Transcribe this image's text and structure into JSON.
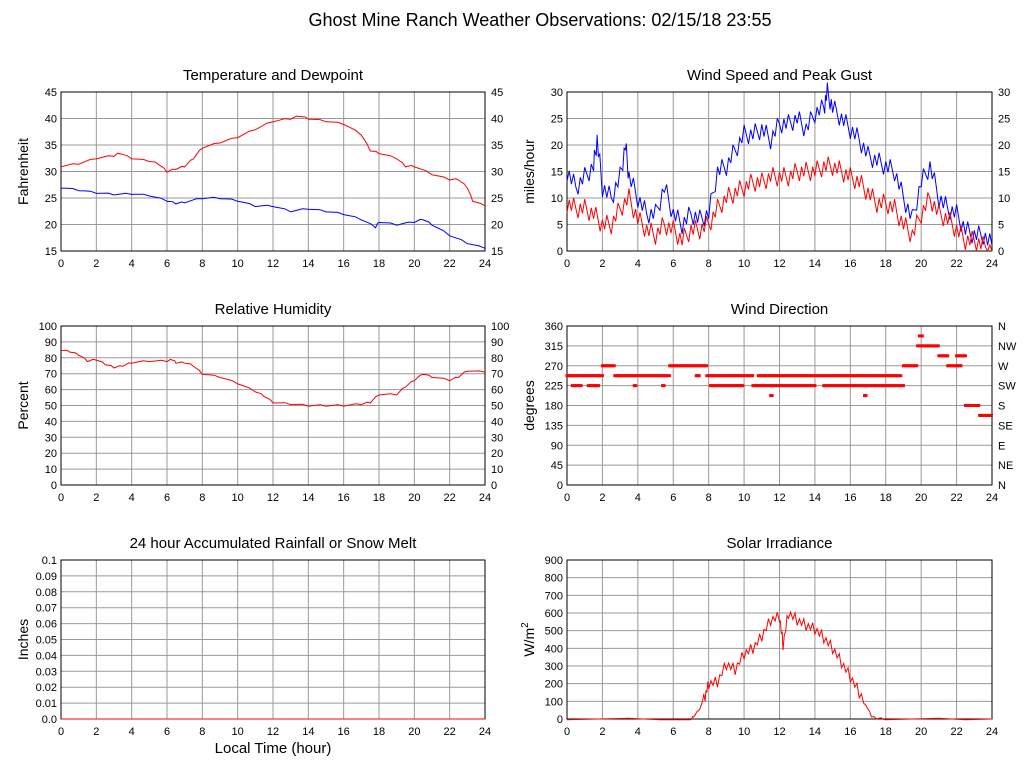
{
  "page_title": "Ghost Mine Ranch Weather Observations: 02/15/18 23:55",
  "x_axis_label": "Local Time (hour)",
  "colors": {
    "red": "#ff0000",
    "blue": "#0000ff",
    "grid": "#999999"
  },
  "chart_data": [
    {
      "id": "temp",
      "type": "line",
      "title": "Temperature and Dewpoint",
      "ylabel": "Fahrenheit",
      "xlim": [
        0,
        24
      ],
      "ylim": [
        15,
        45
      ],
      "xticks": [
        "0",
        "2",
        "4",
        "6",
        "8",
        "10",
        "12",
        "14",
        "16",
        "18",
        "20",
        "22",
        "24"
      ],
      "yticks": [
        "15",
        "20",
        "25",
        "30",
        "35",
        "40",
        "45"
      ],
      "yticks_right": [
        "15",
        "20",
        "25",
        "30",
        "35",
        "40",
        "45"
      ],
      "series": [
        {
          "name": "Temperature",
          "color": "#ff0000",
          "x": [
            0,
            1,
            2,
            3,
            3.3,
            4,
            5,
            5.5,
            6,
            6.5,
            7,
            7.5,
            8,
            9,
            10,
            11,
            12,
            13,
            13.5,
            14,
            15,
            16,
            17,
            17.5,
            18,
            19,
            19.5,
            20,
            21,
            22,
            22.5,
            23,
            23.3,
            24
          ],
          "y": [
            31,
            31.5,
            32.5,
            33,
            33.5,
            32.5,
            32,
            31.5,
            30,
            30.5,
            31,
            32.5,
            34.5,
            35.5,
            36.5,
            38,
            39.5,
            40,
            40.5,
            40,
            39.5,
            39,
            37,
            34,
            33.5,
            32.5,
            31,
            31,
            29.5,
            28.5,
            28.5,
            27,
            24.5,
            23.5
          ]
        },
        {
          "name": "Dewpoint",
          "color": "#0000ff",
          "x": [
            0,
            1,
            2,
            3,
            4,
            5,
            6,
            6.5,
            7,
            8,
            9,
            10,
            11,
            12,
            13,
            14,
            15,
            16,
            17,
            17.8,
            18,
            19,
            20,
            20.5,
            21,
            22,
            23,
            24
          ],
          "y": [
            27,
            26.5,
            26,
            25.7,
            25.8,
            25.5,
            24.5,
            24,
            24.2,
            25,
            25,
            24.5,
            23.5,
            23.5,
            22.5,
            23,
            22.5,
            22,
            21,
            19.5,
            20.5,
            20,
            20.5,
            21,
            20,
            18,
            16.5,
            15.5
          ]
        }
      ]
    },
    {
      "id": "wind",
      "type": "line",
      "title": "Wind Speed and Peak Gust",
      "ylabel": "miles/hour",
      "xlim": [
        0,
        24
      ],
      "ylim": [
        0,
        30
      ],
      "xticks": [
        "0",
        "2",
        "4",
        "6",
        "8",
        "10",
        "12",
        "14",
        "16",
        "18",
        "20",
        "22",
        "24"
      ],
      "yticks": [
        "0",
        "5",
        "10",
        "15",
        "20",
        "25",
        "30"
      ],
      "yticks_right": [
        "0",
        "5",
        "10",
        "15",
        "20",
        "25",
        "30"
      ],
      "series": [
        {
          "name": "Peak Gust",
          "color": "#0000ff",
          "x": [
            0,
            0.5,
            1,
            1.5,
            1.7,
            2,
            2.5,
            3,
            3.3,
            3.5,
            4,
            4.5,
            5,
            5.5,
            6,
            6.5,
            7,
            7.5,
            8,
            8.5,
            9,
            9.5,
            10,
            10.5,
            11,
            11.5,
            12,
            12.5,
            13,
            13.5,
            14,
            14.5,
            14.7,
            15,
            15.5,
            16,
            16.5,
            17,
            17.5,
            18,
            18.5,
            19,
            19.5,
            20,
            20.5,
            21,
            21.5,
            22,
            22.5,
            23,
            23.5,
            24
          ],
          "y": [
            15,
            12,
            14,
            16,
            21,
            12,
            10,
            14,
            20,
            14,
            10,
            7,
            7,
            12,
            7,
            5,
            7,
            6,
            7,
            15,
            16,
            19,
            22,
            22,
            23,
            21,
            24,
            24,
            25,
            23,
            26,
            27,
            30,
            27,
            25,
            23,
            21,
            18,
            17,
            16,
            15,
            10,
            6,
            13,
            16,
            10,
            8,
            7,
            4,
            3,
            3,
            1
          ]
        },
        {
          "name": "Wind Speed",
          "color": "#ff0000",
          "x": [
            0,
            0.5,
            1,
            1.5,
            2,
            2.5,
            3,
            3.5,
            4,
            4.5,
            5,
            5.5,
            6,
            6.5,
            7,
            7.5,
            8,
            8.5,
            9,
            9.5,
            10,
            10.5,
            11,
            11.5,
            12,
            12.5,
            13,
            13.5,
            14,
            14.5,
            15,
            15.5,
            16,
            16.5,
            17,
            17.5,
            18,
            18.5,
            19,
            19.5,
            20,
            20.5,
            21,
            21.5,
            22,
            22.5,
            23,
            23.5,
            24
          ],
          "y": [
            9,
            8,
            8,
            7,
            5,
            5,
            8,
            10,
            6,
            4,
            3,
            5,
            4,
            2,
            4,
            4,
            5,
            8,
            10,
            11,
            12,
            13,
            13,
            14,
            14,
            14,
            15,
            15,
            15,
            16,
            16,
            15,
            14,
            13,
            11,
            9,
            9,
            8,
            5,
            3,
            7,
            10,
            7,
            6,
            4,
            2,
            2,
            1,
            0
          ]
        }
      ]
    },
    {
      "id": "rh",
      "type": "line",
      "title": "Relative Humidity",
      "ylabel": "Percent",
      "xlim": [
        0,
        24
      ],
      "ylim": [
        0,
        100
      ],
      "xticks": [
        "0",
        "2",
        "4",
        "6",
        "8",
        "10",
        "12",
        "14",
        "16",
        "18",
        "20",
        "22",
        "24"
      ],
      "yticks": [
        "0",
        "10",
        "20",
        "30",
        "40",
        "50",
        "60",
        "70",
        "80",
        "90",
        "100"
      ],
      "yticks_right": [
        "0",
        "10",
        "20",
        "30",
        "40",
        "50",
        "60",
        "70",
        "80",
        "90",
        "100"
      ],
      "series": [
        {
          "name": "Relative Humidity",
          "color": "#ff0000",
          "x": [
            0,
            0.5,
            1,
            1.5,
            2,
            2.5,
            3,
            3.5,
            4,
            5,
            6,
            6.3,
            6.5,
            7,
            7.5,
            8,
            9,
            10,
            11,
            11.5,
            12,
            13,
            14,
            15,
            16,
            17,
            17.5,
            18,
            19,
            19.5,
            20,
            20.5,
            21,
            22,
            22.5,
            23,
            24
          ],
          "y": [
            85,
            84,
            82,
            78,
            79,
            76,
            74,
            75,
            77,
            78,
            78,
            79,
            77,
            77,
            75,
            70,
            68,
            64,
            59,
            56,
            52,
            51,
            50,
            50,
            50,
            51,
            52,
            57,
            57,
            62,
            66,
            70,
            68,
            66,
            68,
            72,
            71
          ]
        }
      ]
    },
    {
      "id": "dir",
      "type": "scatter",
      "title": "Wind Direction",
      "ylabel": "degrees",
      "xlim": [
        0,
        24
      ],
      "ylim": [
        0,
        360
      ],
      "xticks": [
        "0",
        "2",
        "4",
        "6",
        "8",
        "10",
        "12",
        "14",
        "16",
        "18",
        "20",
        "22",
        "24"
      ],
      "yticks": [
        "0",
        "45",
        "90",
        "135",
        "180",
        "225",
        "270",
        "315",
        "360"
      ],
      "yticks_right": [
        "N",
        "NE",
        "E",
        "SE",
        "S",
        "SW",
        "W",
        "NW",
        "N"
      ],
      "series": [
        {
          "name": "Wind Direction",
          "color": "#ff0000",
          "segments": [
            [
              0,
              2,
              247.5
            ],
            [
              0.3,
              0.8,
              225
            ],
            [
              1.2,
              1.8,
              225
            ],
            [
              2,
              2.7,
              270
            ],
            [
              2.7,
              5.8,
              247.5
            ],
            [
              3.8,
              3.9,
              225
            ],
            [
              5.4,
              5.5,
              225
            ],
            [
              5.8,
              7.9,
              270
            ],
            [
              7.3,
              7.5,
              247.5
            ],
            [
              7.9,
              10.5,
              247.5
            ],
            [
              8.1,
              10,
              225
            ],
            [
              10.5,
              14,
              225
            ],
            [
              10.8,
              14.5,
              247.5
            ],
            [
              11.5,
              11.6,
              202.5
            ],
            [
              14.5,
              19,
              225
            ],
            [
              14.6,
              18.9,
              247.5
            ],
            [
              16.8,
              16.9,
              202.5
            ],
            [
              19,
              19.8,
              270
            ],
            [
              19.8,
              21,
              315
            ],
            [
              19.9,
              20.1,
              337.5
            ],
            [
              21,
              21.5,
              292.5
            ],
            [
              21.5,
              22.3,
              270
            ],
            [
              22,
              22.5,
              292.5
            ],
            [
              22.5,
              23.3,
              180
            ],
            [
              23.3,
              24,
              157.5
            ]
          ]
        }
      ]
    },
    {
      "id": "rain",
      "type": "line",
      "title": "24 hour Accumulated Rainfall or Snow Melt",
      "ylabel": "Inches",
      "xlim": [
        0,
        24
      ],
      "ylim": [
        0,
        0.1
      ],
      "xticks": [
        "0",
        "2",
        "4",
        "6",
        "8",
        "10",
        "12",
        "14",
        "16",
        "18",
        "20",
        "22",
        "24"
      ],
      "yticks": [
        "0.0",
        "0.01",
        "0.02",
        "0.03",
        "0.04",
        "0.05",
        "0.06",
        "0.07",
        "0.08",
        "0.09",
        "0.1"
      ],
      "series": [
        {
          "name": "Rainfall",
          "color": "#ff0000",
          "x": [
            0,
            24
          ],
          "y": [
            0,
            0
          ]
        }
      ]
    },
    {
      "id": "solar",
      "type": "line",
      "title": "Solar Irradiance",
      "ylabel": "W/m",
      "ylabel_sup": "2",
      "xlim": [
        0,
        24
      ],
      "ylim": [
        0,
        900
      ],
      "xticks": [
        "0",
        "2",
        "4",
        "6",
        "8",
        "10",
        "12",
        "14",
        "16",
        "18",
        "20",
        "22",
        "24"
      ],
      "yticks": [
        "0",
        "100",
        "200",
        "300",
        "400",
        "500",
        "600",
        "700",
        "800",
        "900"
      ],
      "series": [
        {
          "name": "Solar Irradiance",
          "color": "#ff0000",
          "x": [
            0,
            7,
            7.2,
            7.5,
            7.8,
            8,
            8.5,
            9,
            9.5,
            10,
            10.5,
            11,
            11.5,
            12,
            12.2,
            12.5,
            13,
            13.5,
            14,
            14.5,
            15,
            15.5,
            16,
            16.5,
            17,
            17.2,
            17.5,
            18,
            24
          ],
          "y": [
            0,
            0,
            20,
            60,
            130,
            200,
            210,
            310,
            280,
            370,
            400,
            470,
            560,
            580,
            420,
            600,
            560,
            530,
            510,
            460,
            400,
            320,
            240,
            150,
            60,
            15,
            5,
            0,
            0
          ]
        }
      ]
    }
  ]
}
